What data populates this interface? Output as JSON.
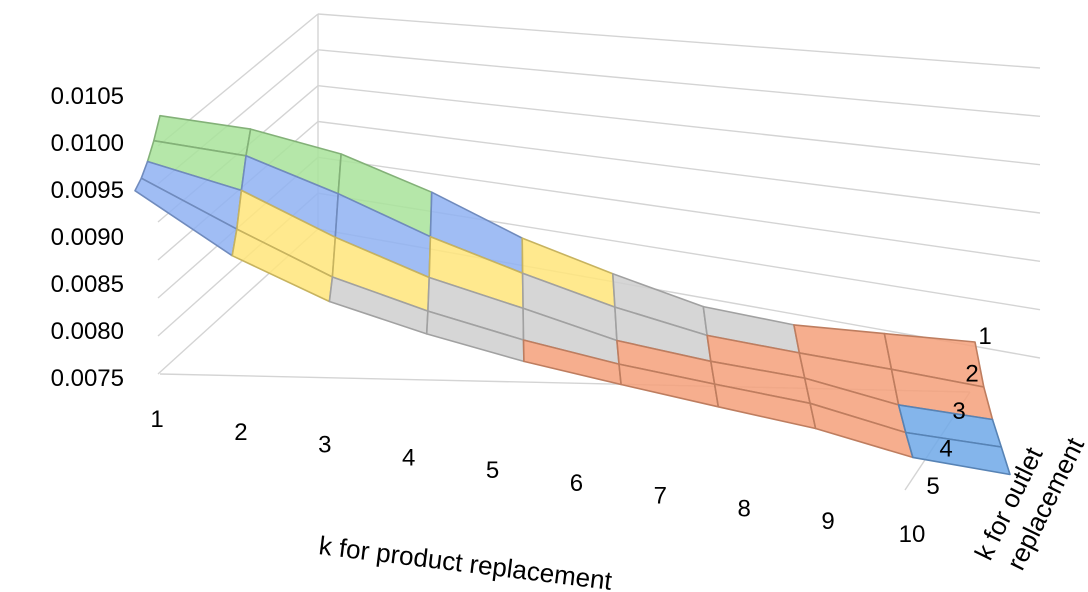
{
  "chart_data": {
    "type": "surface",
    "title": "",
    "xlabel": "k for product replacement",
    "ylabel": [
      "k for outlet",
      "replacement"
    ],
    "zlabel": "",
    "x": [
      "1",
      "2",
      "3",
      "4",
      "5",
      "6",
      "7",
      "8",
      "9",
      "10"
    ],
    "y": [
      "1",
      "2",
      "3",
      "4",
      "5"
    ],
    "zlim": [
      0.0075,
      0.0105
    ],
    "z_ticks": [
      "0.0075",
      "0.0080",
      "0.0085",
      "0.0090",
      "0.0095",
      "0.0100",
      "0.0105"
    ],
    "grid": true,
    "color_bands": [
      {
        "range": [
          0.0075,
          0.008
        ],
        "color": "#6fa8e8"
      },
      {
        "range": [
          0.008,
          0.0085
        ],
        "color": "#f4a07a"
      },
      {
        "range": [
          0.0085,
          0.009
        ],
        "color": "#cfcfcf"
      },
      {
        "range": [
          0.009,
          0.0095
        ],
        "color": "#ffe57a"
      },
      {
        "range": [
          0.0095,
          0.01
        ],
        "color": "#8fb2f2"
      },
      {
        "range": [
          0.01,
          0.0105
        ],
        "color": "#a8e39a"
      }
    ],
    "values": [
      [
        0.0106,
        0.0103,
        0.01005,
        0.00985,
        0.0097
      ],
      [
        0.0106,
        0.0103,
        0.0099,
        0.00945,
        0.00915
      ],
      [
        0.01045,
        0.01,
        0.0095,
        0.00905,
        0.0088
      ],
      [
        0.0101,
        0.0096,
        0.00915,
        0.0088,
        0.0086
      ],
      [
        0.0096,
        0.00925,
        0.0089,
        0.0086,
        0.00845
      ],
      [
        0.0092,
        0.0089,
        0.0086,
        0.00845,
        0.00835
      ],
      [
        0.0088,
        0.0086,
        0.00845,
        0.00835,
        0.00825
      ],
      [
        0.0086,
        0.00845,
        0.00835,
        0.00825,
        0.00815
      ],
      [
        0.00855,
        0.0083,
        0.00805,
        0.00795,
        0.0079
      ],
      [
        0.0085,
        0.0081,
        0.00795,
        0.0079,
        0.00785
      ]
    ]
  }
}
